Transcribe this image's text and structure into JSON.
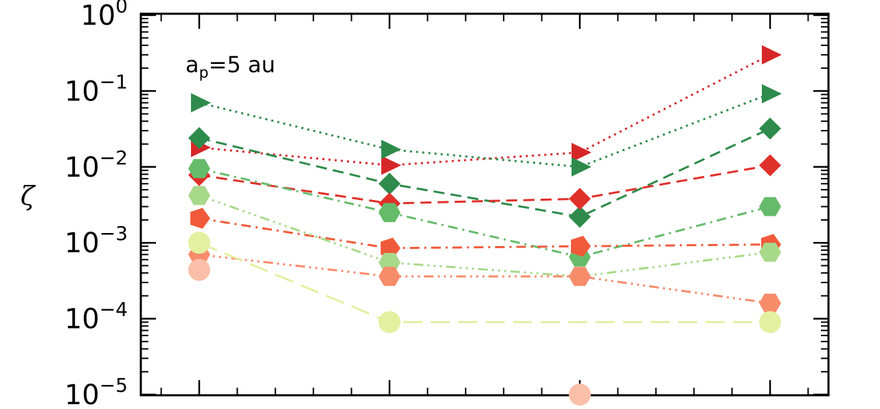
{
  "chart_data": {
    "type": "scatter",
    "title": "",
    "xlabel": "",
    "ylabel": "ζ",
    "y_scale": "log",
    "ylim": [
      1e-05,
      1
    ],
    "y_ticks": [
      {
        "base": "10",
        "exp": "-5"
      },
      {
        "base": "10",
        "exp": "-4"
      },
      {
        "base": "10",
        "exp": "-3"
      },
      {
        "base": "10",
        "exp": "-2"
      },
      {
        "base": "10",
        "exp": "-1"
      },
      {
        "base": "10",
        "exp": "0"
      }
    ],
    "x_positions": [
      1,
      2,
      3,
      4
    ],
    "x_tick_labels": [],
    "annotation": {
      "a": "a",
      "sub": "p",
      "rest": "=5 au"
    },
    "series": [
      {
        "marker": "triangle",
        "color": "#d62728",
        "dash": "dotted",
        "values": [
          0.018,
          0.0105,
          0.0155,
          0.3
        ]
      },
      {
        "marker": "triangle",
        "color": "#2e8b4b",
        "dash": "dotted",
        "values": [
          0.07,
          0.017,
          0.01,
          0.092
        ]
      },
      {
        "marker": "diamond",
        "color": "#2e8b4b",
        "dash": "dashed",
        "values": [
          0.024,
          0.006,
          0.0022,
          0.032
        ]
      },
      {
        "marker": "diamond",
        "color": "#e0302a",
        "dash": "dashed",
        "values": [
          0.0078,
          0.0033,
          0.0038,
          0.0105
        ]
      },
      {
        "marker": "hexagon",
        "color": "#66bb6a",
        "dash": "dashdot",
        "values": [
          0.0095,
          0.0025,
          0.00065,
          0.003
        ]
      },
      {
        "marker": "pentagon",
        "color": "#f05a3a",
        "dash": "dashdot",
        "values": [
          0.0021,
          0.00085,
          0.0009,
          0.00095
        ]
      },
      {
        "marker": "hexagon",
        "color": "#a8d98a",
        "dash": "dashdotdotdot",
        "values": [
          0.0042,
          0.00055,
          0.00036,
          0.00075
        ]
      },
      {
        "marker": "hexagon",
        "color": "#f78c6b",
        "dash": "dashdotdotdot",
        "values": [
          0.0007,
          0.00036,
          0.00036,
          0.00016
        ]
      },
      {
        "marker": "circle",
        "color": "#e3f0a0",
        "dash": "longdash",
        "values": [
          0.001,
          9e-05,
          null,
          9e-05
        ]
      },
      {
        "marker": "circle",
        "color": "#f9bfa8",
        "dash": "none",
        "values": [
          0.00044,
          null,
          1e-05,
          null
        ]
      }
    ]
  }
}
